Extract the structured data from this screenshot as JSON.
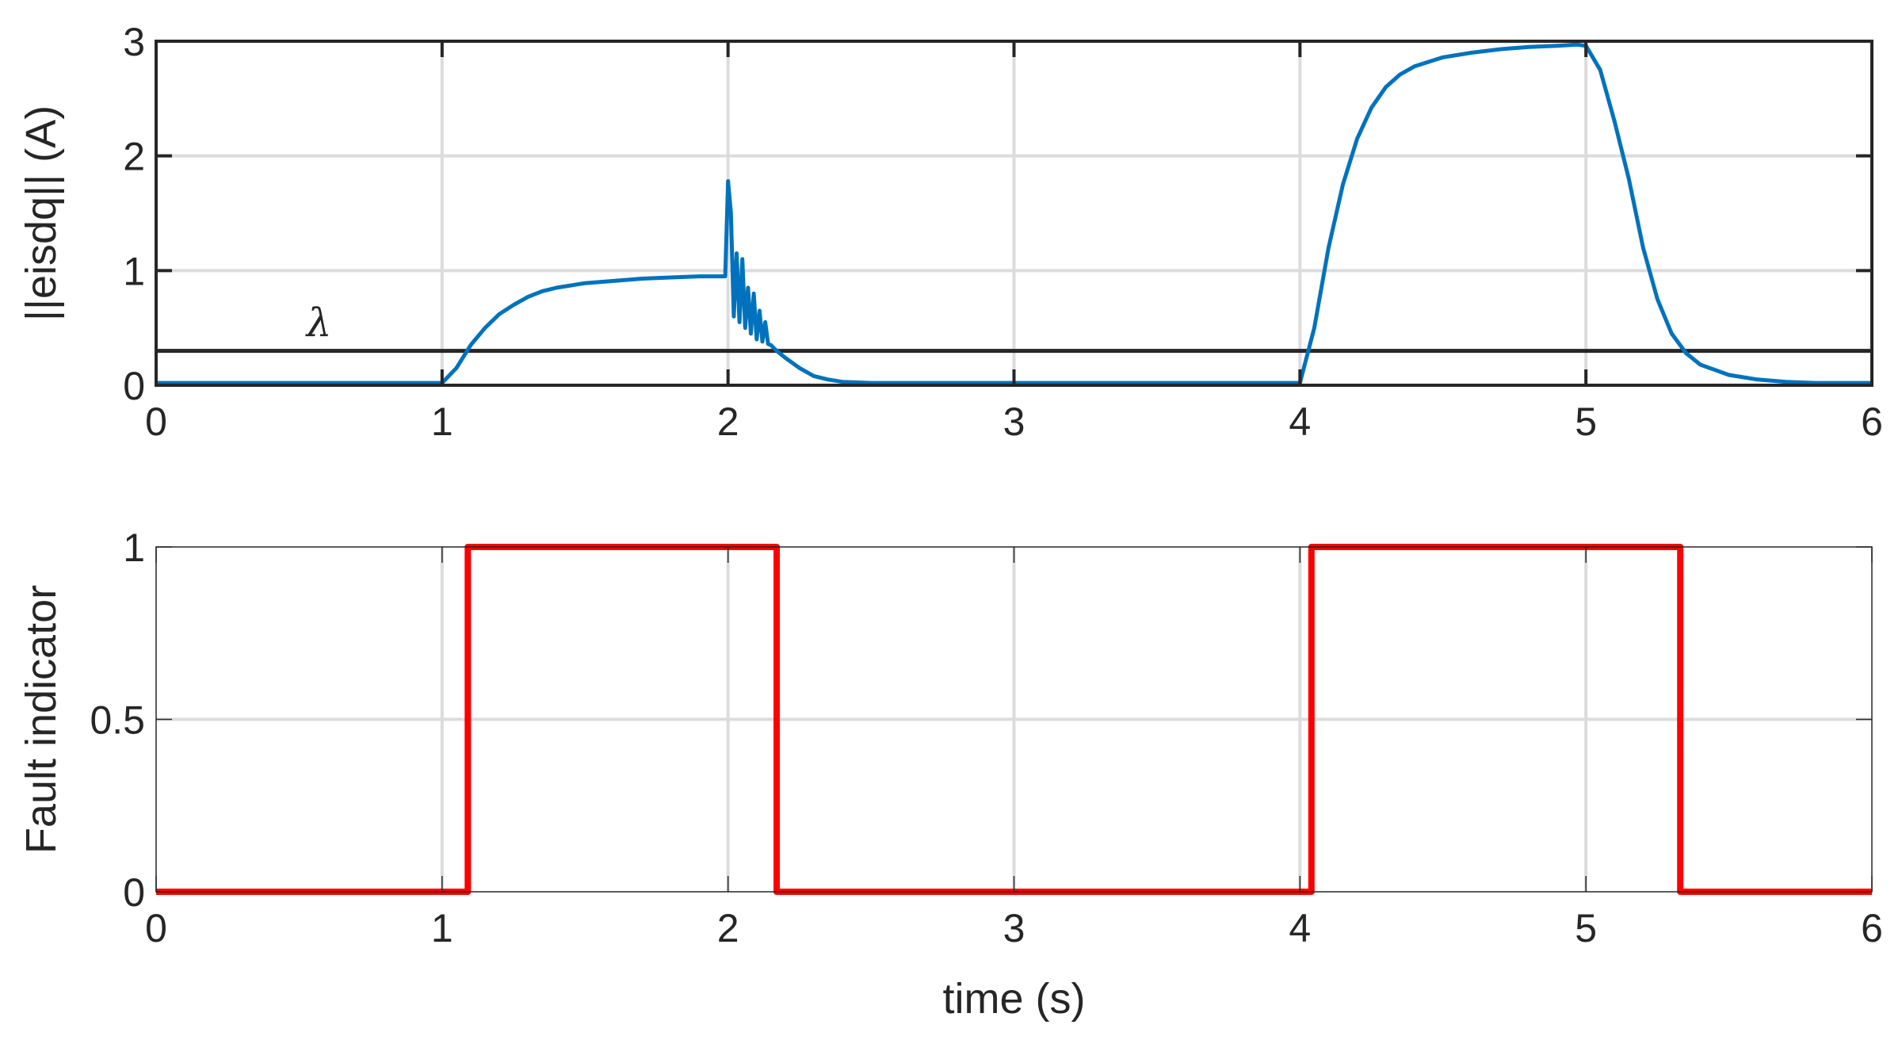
{
  "chart_data": [
    {
      "type": "line",
      "ylabel": "||eisdq|| (A)",
      "xlabel": "",
      "xlim": [
        0,
        6
      ],
      "ylim": [
        0,
        3
      ],
      "xticks": [
        "0",
        "1",
        "2",
        "3",
        "4",
        "5",
        "6"
      ],
      "yticks": [
        "0",
        "1",
        "2",
        "3"
      ],
      "grid": true,
      "colors": {
        "series": "#0072BD",
        "threshold": "#262626"
      },
      "threshold": {
        "label": "λ",
        "value": 0.3,
        "label_x": 0.57,
        "label_y": 0.55
      },
      "series": [
        {
          "color": "#0072BD",
          "x": [
            0,
            0.3,
            0.6,
            1.0,
            1.05,
            1.1,
            1.15,
            1.2,
            1.25,
            1.3,
            1.35,
            1.4,
            1.5,
            1.6,
            1.7,
            1.8,
            1.9,
            1.99,
            2.0,
            2.01,
            2.02,
            2.03,
            2.04,
            2.05,
            2.06,
            2.07,
            2.08,
            2.09,
            2.1,
            2.11,
            2.12,
            2.13,
            2.14,
            2.15,
            2.17,
            2.2,
            2.25,
            2.3,
            2.35,
            2.4,
            2.5,
            2.6,
            3.0,
            3.5,
            4.0,
            4.05,
            4.1,
            4.15,
            4.2,
            4.25,
            4.3,
            4.35,
            4.4,
            4.5,
            4.6,
            4.7,
            4.8,
            4.9,
            4.97,
            5.0,
            5.05,
            5.1,
            5.15,
            5.2,
            5.25,
            5.3,
            5.35,
            5.4,
            5.5,
            5.6,
            5.7,
            5.8,
            5.9,
            6.0
          ],
          "y": [
            0.02,
            0.02,
            0.02,
            0.02,
            0.15,
            0.35,
            0.5,
            0.62,
            0.7,
            0.77,
            0.82,
            0.85,
            0.89,
            0.91,
            0.93,
            0.94,
            0.95,
            0.95,
            1.78,
            1.5,
            0.6,
            1.15,
            0.55,
            1.1,
            0.5,
            0.85,
            0.45,
            0.8,
            0.4,
            0.65,
            0.38,
            0.55,
            0.36,
            0.35,
            0.3,
            0.24,
            0.15,
            0.08,
            0.05,
            0.03,
            0.02,
            0.02,
            0.02,
            0.02,
            0.02,
            0.5,
            1.2,
            1.75,
            2.15,
            2.42,
            2.6,
            2.71,
            2.78,
            2.86,
            2.9,
            2.93,
            2.95,
            2.96,
            2.97,
            2.96,
            2.75,
            2.3,
            1.8,
            1.2,
            0.75,
            0.45,
            0.28,
            0.18,
            0.09,
            0.05,
            0.03,
            0.02,
            0.02,
            0.02
          ]
        }
      ]
    },
    {
      "type": "line",
      "ylabel": "Fault indicator",
      "xlabel": "time (s)",
      "xlim": [
        0,
        6
      ],
      "ylim": [
        0,
        1
      ],
      "xticks": [
        "0",
        "1",
        "2",
        "3",
        "4",
        "5",
        "6"
      ],
      "yticks": [
        "0",
        "0.5",
        "1"
      ],
      "grid": true,
      "series": [
        {
          "color": "#FF0000",
          "x": [
            0,
            1.09,
            1.09,
            2.17,
            2.17,
            4.04,
            4.04,
            5.33,
            5.33,
            6.0
          ],
          "y": [
            0,
            0,
            1,
            1,
            0,
            0,
            1,
            1,
            0,
            0
          ]
        }
      ]
    }
  ]
}
